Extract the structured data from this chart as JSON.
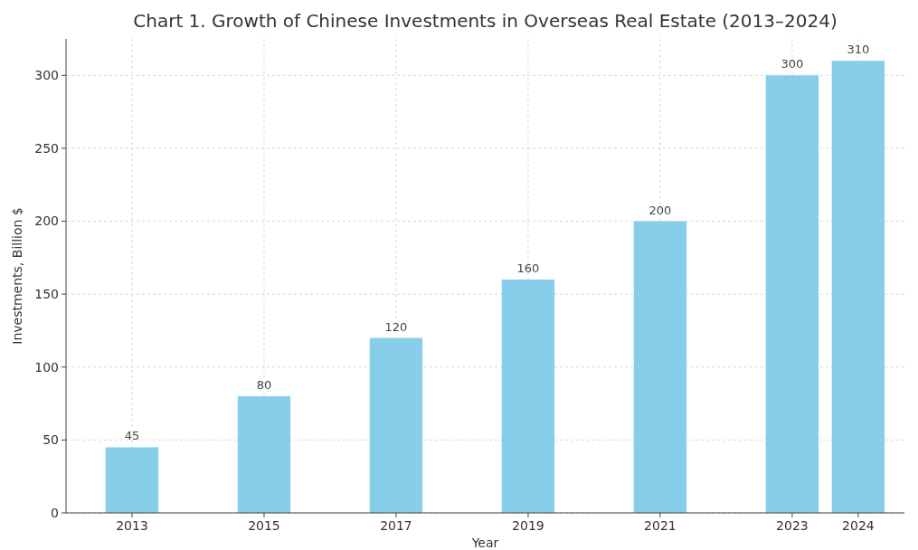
{
  "chart_data": {
    "type": "bar",
    "title": "Chart 1. Growth of Chinese Investments in Overseas Real Estate (2013–2024)",
    "xlabel": "Year",
    "ylabel": "Investments, Billion $",
    "x": [
      2013,
      2015,
      2017,
      2019,
      2021,
      2023,
      2024
    ],
    "values": [
      45,
      80,
      120,
      160,
      200,
      300,
      310
    ],
    "color": "#87ceeb",
    "data_labels": true,
    "grid": true,
    "xlim": [
      2012,
      2024.7
    ],
    "xticks": [
      2013,
      2015,
      2017,
      2019,
      2021,
      2023,
      2024
    ],
    "ylim": [
      0,
      325
    ],
    "yticks": [
      0,
      50,
      100,
      150,
      200,
      250,
      300
    ]
  }
}
